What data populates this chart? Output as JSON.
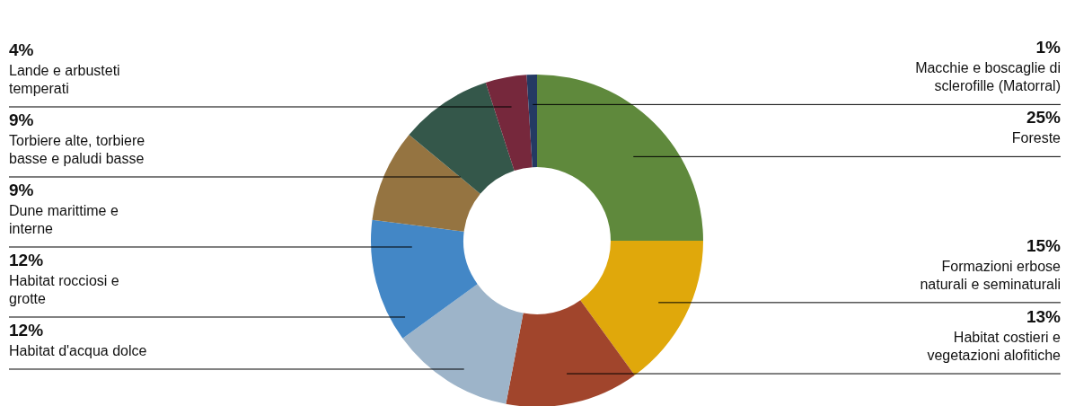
{
  "chart_data": {
    "type": "donut",
    "categories": [
      "Foreste",
      "Formazioni erbose naturali e seminaturali",
      "Habitat costieri e vegetazioni alofitiche",
      "Habitat d'acqua dolce",
      "Habitat rocciosi e grotte",
      "Dune marittime e interne",
      "Torbiere alte, torbiere basse e paludi basse",
      "Lande e arbusteti temperati",
      "Macchie e boscaglie di sclerofille (Matorral)"
    ],
    "values": [
      25,
      15,
      13,
      12,
      12,
      9,
      9,
      4,
      1
    ],
    "value_labels": [
      "25%",
      "15%",
      "13%",
      "12%",
      "12%",
      "9%",
      "9%",
      "4%",
      "1%"
    ],
    "colors": [
      "#5f893c",
      "#e0a80b",
      "#a1452c",
      "#9db4c9",
      "#4387c6",
      "#957441",
      "#34574a",
      "#76283c",
      "#243a63"
    ]
  }
}
